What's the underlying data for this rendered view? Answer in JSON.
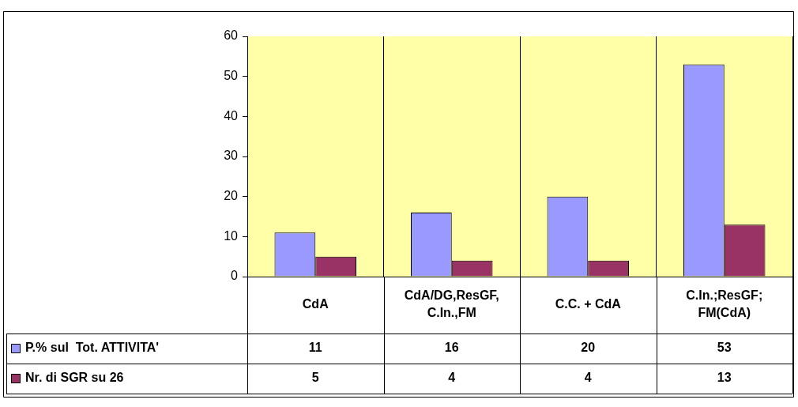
{
  "chart_data": {
    "type": "bar",
    "categories": [
      "CdA",
      "CdA/DG,ResGF, C.In.,FM",
      "C.C. + CdA",
      "C.In.;ResGF; FM(CdA)"
    ],
    "series": [
      {
        "name": "P.% sul  Tot. ATTIVITA'",
        "color": "#9999ff",
        "values": [
          11,
          16,
          20,
          53
        ]
      },
      {
        "name": "Nr. di SGR su 26",
        "color": "#993366",
        "values": [
          5,
          4,
          4,
          13
        ]
      }
    ],
    "ylim": [
      0,
      60
    ],
    "yticks": [
      0,
      10,
      20,
      30,
      40,
      50,
      60
    ],
    "grid": "x",
    "legend": "bottom",
    "data_labels": true
  }
}
